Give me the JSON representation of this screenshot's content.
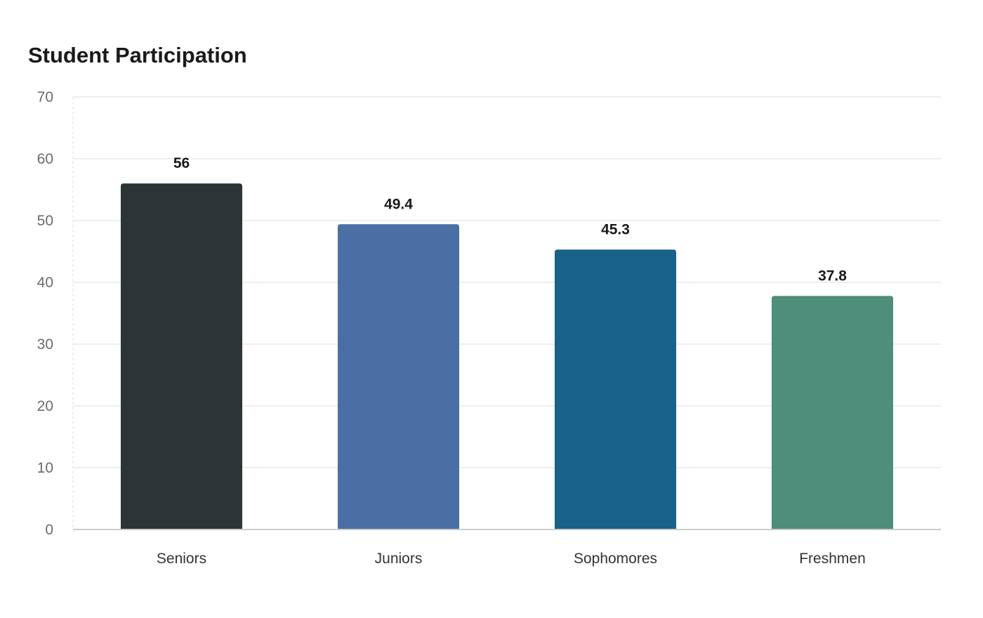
{
  "chart_data": {
    "type": "bar",
    "title": "Student Participation",
    "xlabel": "",
    "ylabel": "",
    "categories": [
      "Seniors",
      "Juniors",
      "Sophomores",
      "Freshmen"
    ],
    "values": [
      56,
      49.4,
      45.3,
      37.8
    ],
    "value_labels": [
      "56",
      "49.4",
      "45.3",
      "37.8"
    ],
    "colors": [
      "#2d3436",
      "#4a6fa5",
      "#186188",
      "#4e8e7a"
    ],
    "ylim": [
      0,
      70
    ],
    "yticks": [
      0,
      10,
      20,
      30,
      40,
      50,
      60,
      70
    ],
    "grid": true,
    "legend": "none"
  }
}
